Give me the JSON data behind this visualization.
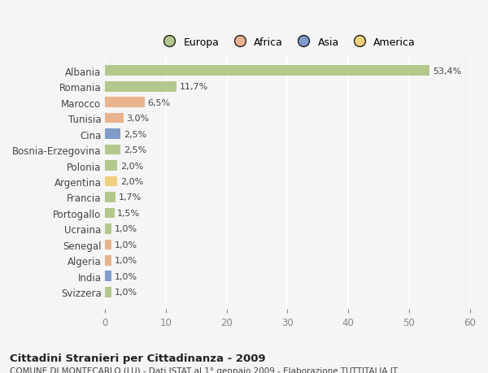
{
  "categories": [
    "Albania",
    "Romania",
    "Marocco",
    "Tunisia",
    "Cina",
    "Bosnia-Erzegovina",
    "Polonia",
    "Argentina",
    "Francia",
    "Portogallo",
    "Ucraina",
    "Senegal",
    "Algeria",
    "India",
    "Svizzera"
  ],
  "values": [
    53.4,
    11.7,
    6.5,
    3.0,
    2.5,
    2.5,
    2.0,
    2.0,
    1.7,
    1.5,
    1.0,
    1.0,
    1.0,
    1.0,
    1.0
  ],
  "labels": [
    "53,4%",
    "11,7%",
    "6,5%",
    "3,0%",
    "2,5%",
    "2,5%",
    "2,0%",
    "2,0%",
    "1,7%",
    "1,5%",
    "1,0%",
    "1,0%",
    "1,0%",
    "1,0%",
    "1,0%"
  ],
  "bar_colors": [
    "#a8c07a",
    "#a8c07a",
    "#e8a87c",
    "#e8a87c",
    "#6b8dc4",
    "#a8c07a",
    "#a8c07a",
    "#f0c96a",
    "#a8c07a",
    "#a8c07a",
    "#a8c07a",
    "#e8a87c",
    "#e8a87c",
    "#6b8dc4",
    "#a8c07a"
  ],
  "legend_labels": [
    "Europa",
    "Africa",
    "Asia",
    "America"
  ],
  "legend_colors": [
    "#a8c07a",
    "#e8a87c",
    "#6b8dc4",
    "#f0c96a"
  ],
  "xlim": [
    0,
    60
  ],
  "xticks": [
    0,
    10,
    20,
    30,
    40,
    50,
    60
  ],
  "title": "Cittadini Stranieri per Cittadinanza - 2009",
  "subtitle": "COMUNE DI MONTECARLO (LU) - Dati ISTAT al 1° gennaio 2009 - Elaborazione TUTTITALIA.IT",
  "background_color": "#f5f5f5",
  "bar_alpha": 0.85,
  "figsize": [
    6.0,
    4.6
  ],
  "dpi": 100
}
